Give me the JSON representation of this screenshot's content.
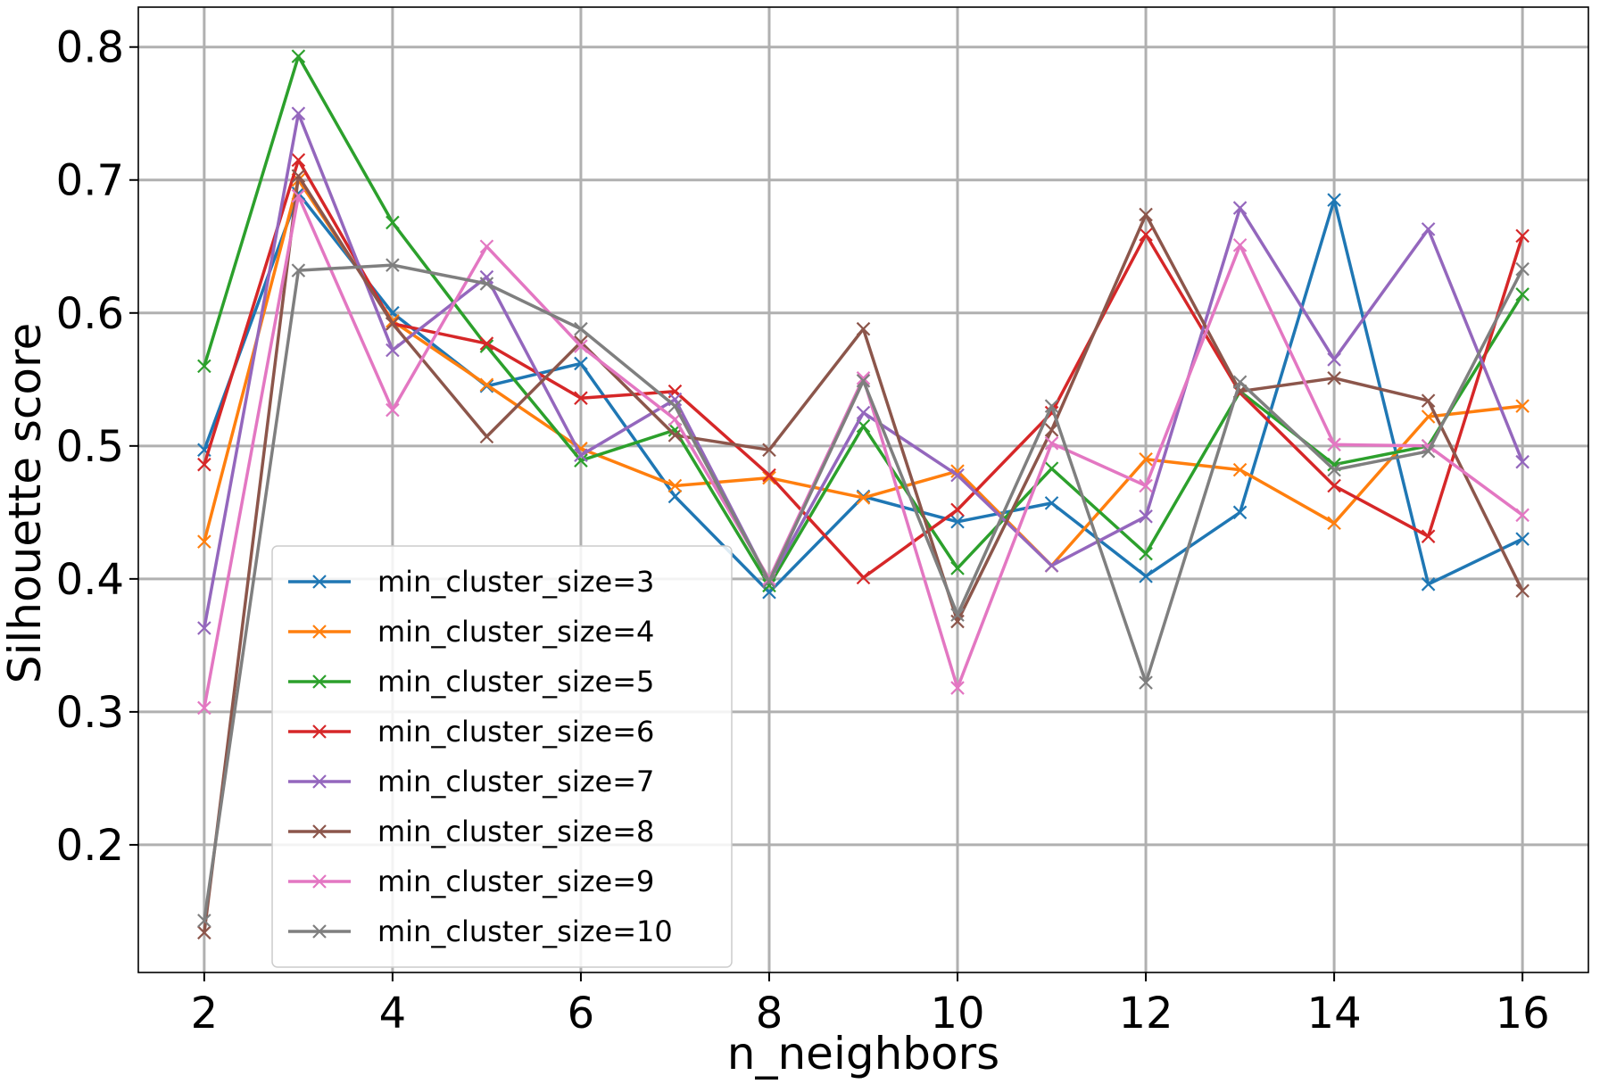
{
  "chart_data": {
    "type": "line",
    "title": "",
    "xlabel": "n_neighbors",
    "ylabel": "Silhouette score",
    "x": [
      2,
      3,
      4,
      5,
      6,
      7,
      8,
      9,
      10,
      11,
      12,
      13,
      14,
      15,
      16
    ],
    "xlim": [
      1.3,
      16.7
    ],
    "ylim": [
      0.104,
      0.83
    ],
    "xticks": [
      2,
      4,
      6,
      8,
      10,
      12,
      14,
      16
    ],
    "yticks": [
      0.2,
      0.3,
      0.4,
      0.5,
      0.6,
      0.7,
      0.8
    ],
    "ytick_labels": [
      "0.2",
      "0.3",
      "0.4",
      "0.5",
      "0.6",
      "0.7",
      "0.8"
    ],
    "grid": true,
    "legend_position": "lower-left",
    "marker": "x",
    "series": [
      {
        "name": "min_cluster_size=3",
        "color": "#1f77b4",
        "values": [
          0.497,
          0.69,
          0.6,
          0.545,
          0.562,
          0.462,
          0.39,
          0.462,
          0.443,
          0.457,
          0.402,
          0.45,
          0.685,
          0.396,
          0.43
        ]
      },
      {
        "name": "min_cluster_size=4",
        "color": "#ff7f0e",
        "values": [
          0.428,
          0.7,
          0.594,
          0.546,
          0.498,
          0.47,
          0.476,
          0.461,
          0.481,
          0.41,
          0.49,
          0.482,
          0.442,
          0.522,
          0.53
        ]
      },
      {
        "name": "min_cluster_size=5",
        "color": "#2ca02c",
        "values": [
          0.56,
          0.793,
          0.668,
          0.575,
          0.489,
          0.512,
          0.395,
          0.515,
          0.408,
          0.483,
          0.419,
          0.541,
          0.486,
          0.5,
          0.614
        ]
      },
      {
        "name": "min_cluster_size=6",
        "color": "#d62728",
        "values": [
          0.486,
          0.715,
          0.592,
          0.577,
          0.536,
          0.541,
          0.478,
          0.401,
          0.452,
          0.525,
          0.659,
          0.54,
          0.47,
          0.432,
          0.658
        ]
      },
      {
        "name": "min_cluster_size=7",
        "color": "#9467bd",
        "values": [
          0.363,
          0.75,
          0.572,
          0.627,
          0.493,
          0.535,
          0.398,
          0.525,
          0.478,
          0.41,
          0.447,
          0.679,
          0.565,
          0.663,
          0.488
        ]
      },
      {
        "name": "min_cluster_size=8",
        "color": "#8c564b",
        "values": [
          0.134,
          0.703,
          0.592,
          0.507,
          0.578,
          0.508,
          0.497,
          0.588,
          0.368,
          0.512,
          0.674,
          0.541,
          0.551,
          0.534,
          0.391
        ]
      },
      {
        "name": "min_cluster_size=9",
        "color": "#e377c2",
        "values": [
          0.303,
          0.688,
          0.527,
          0.65,
          0.575,
          0.52,
          0.4,
          0.551,
          0.318,
          0.502,
          0.47,
          0.651,
          0.501,
          0.5,
          0.448
        ]
      },
      {
        "name": "min_cluster_size=10",
        "color": "#7f7f7f",
        "values": [
          0.143,
          0.632,
          0.636,
          0.622,
          0.588,
          0.53,
          0.398,
          0.549,
          0.373,
          0.53,
          0.322,
          0.548,
          0.482,
          0.496,
          0.633
        ]
      }
    ]
  }
}
